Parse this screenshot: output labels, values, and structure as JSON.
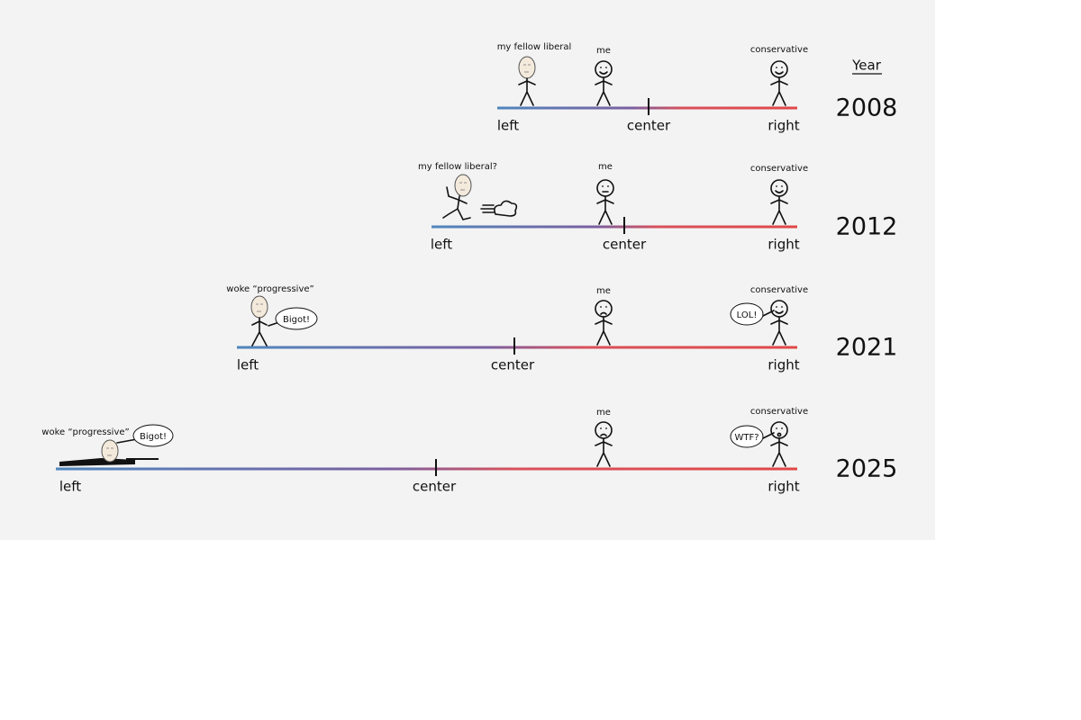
{
  "header": {
    "year_label": "Year"
  },
  "rows": [
    {
      "year": "2008",
      "axis": {
        "left": "left",
        "center": "center",
        "right": "right"
      },
      "figures": [
        {
          "label": "my fellow liberal"
        },
        {
          "label": "me"
        },
        {
          "label": "conservative"
        }
      ]
    },
    {
      "year": "2012",
      "axis": {
        "left": "left",
        "center": "center",
        "right": "right"
      },
      "figures": [
        {
          "label": "my fellow liberal?"
        },
        {
          "label": "me"
        },
        {
          "label": "conservative"
        }
      ]
    },
    {
      "year": "2021",
      "axis": {
        "left": "left",
        "center": "center",
        "right": "right"
      },
      "figures": [
        {
          "label": "woke “progressive”",
          "speech": "Bigot!"
        },
        {
          "label": "me"
        },
        {
          "label": "conservative",
          "speech": "LOL!"
        }
      ]
    },
    {
      "year": "2025",
      "axis": {
        "left": "left",
        "center": "center",
        "right": "right"
      },
      "figures": [
        {
          "label": "woke “progressive”",
          "speech": "Bigot!"
        },
        {
          "label": "me"
        },
        {
          "label": "conservative",
          "speech": "WTF?"
        }
      ]
    }
  ]
}
